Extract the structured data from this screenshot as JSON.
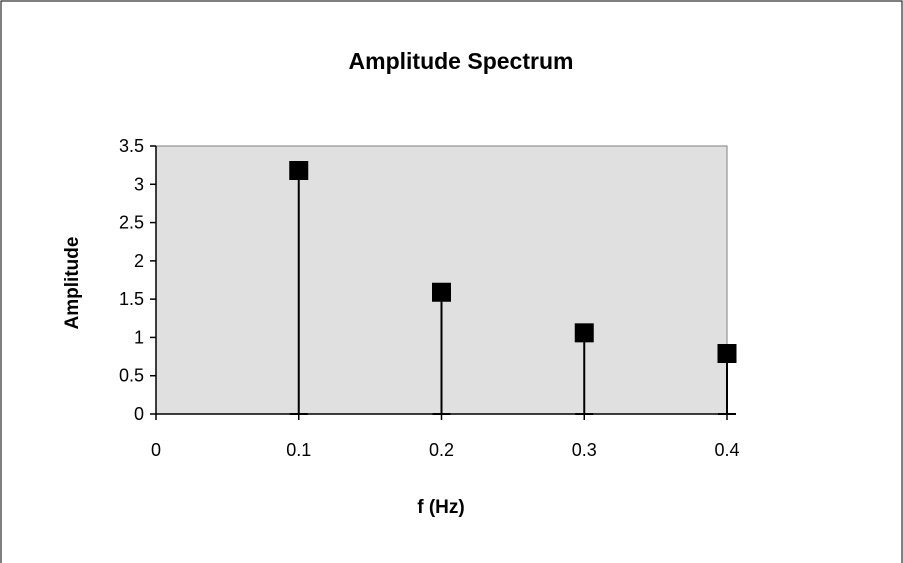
{
  "chart_data": {
    "type": "scatter",
    "style": "stem",
    "title": "Amplitude Spectrum",
    "xlabel": "f (Hz)",
    "ylabel": "Amplitude",
    "xlim": [
      0,
      0.4
    ],
    "ylim": [
      0,
      3.5
    ],
    "x_ticks": [
      "0",
      "0.1",
      "0.2",
      "0.3",
      "0.4"
    ],
    "y_ticks": [
      "0",
      "0.5",
      "1",
      "1.5",
      "2",
      "2.5",
      "3",
      "3.5"
    ],
    "grid": false,
    "legend": "none",
    "plot_background": "#e0e0e0",
    "marker_color": "#000000",
    "marker_shape": "square",
    "series": [
      {
        "x": [
          0.1,
          0.2,
          0.3,
          0.4
        ],
        "y": [
          3.18,
          1.59,
          1.06,
          0.79
        ]
      }
    ]
  }
}
